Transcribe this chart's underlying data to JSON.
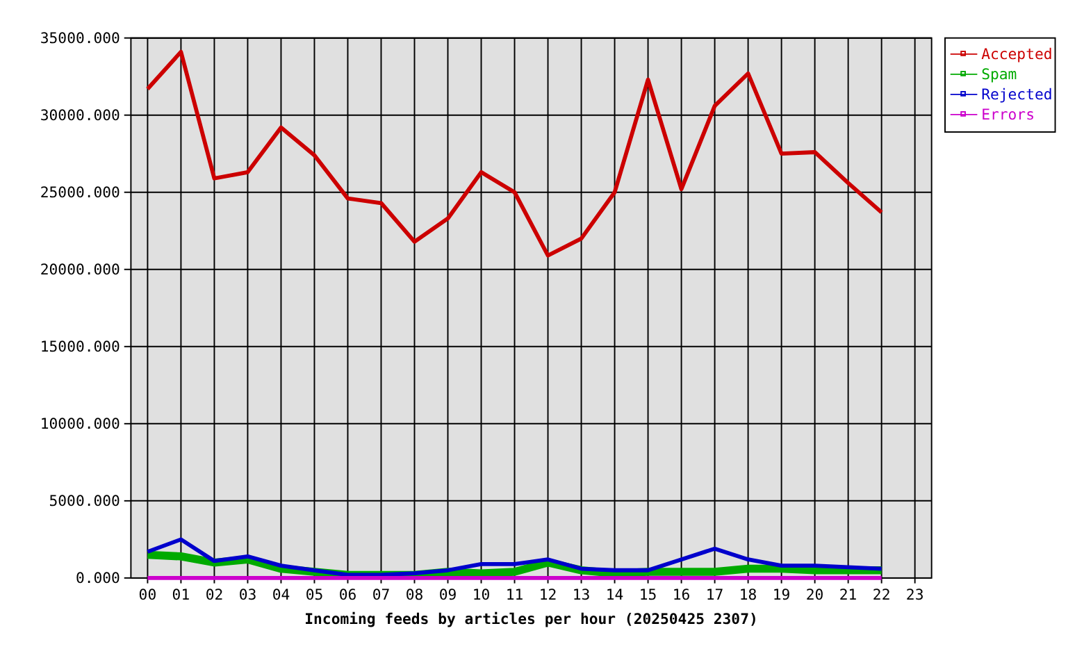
{
  "chart_data": {
    "type": "line",
    "xlabel": "Incoming feeds by articles per hour (20250425 2307)",
    "categories": [
      "00",
      "01",
      "02",
      "03",
      "04",
      "05",
      "06",
      "07",
      "08",
      "09",
      "10",
      "11",
      "12",
      "13",
      "14",
      "15",
      "16",
      "17",
      "18",
      "19",
      "20",
      "21",
      "22",
      "23"
    ],
    "series": [
      {
        "name": "Accepted",
        "color": "#cc0000",
        "values": [
          31700,
          34100,
          25900,
          26300,
          29200,
          27400,
          24600,
          24300,
          21800,
          23300,
          26300,
          25000,
          20900,
          22000,
          25000,
          32300,
          25200,
          30600,
          32700,
          27500,
          27600,
          25600,
          23700,
          null
        ]
      },
      {
        "name": "Spam",
        "color": "#00aa00",
        "values": [
          1500,
          1400,
          1000,
          1200,
          600,
          400,
          200,
          200,
          200,
          400,
          300,
          400,
          1000,
          500,
          300,
          400,
          400,
          400,
          600,
          600,
          500,
          500,
          500,
          null
        ]
      },
      {
        "name": "Rejected",
        "color": "#0000cc",
        "values": [
          1700,
          2500,
          1100,
          1400,
          800,
          500,
          200,
          200,
          300,
          500,
          900,
          900,
          1200,
          600,
          500,
          500,
          1200,
          1900,
          1200,
          800,
          800,
          700,
          600,
          null
        ]
      },
      {
        "name": "Errors",
        "color": "#cc00cc",
        "values": [
          0,
          0,
          0,
          0,
          0,
          0,
          0,
          0,
          0,
          0,
          0,
          0,
          0,
          0,
          0,
          0,
          0,
          0,
          0,
          0,
          0,
          0,
          0,
          null
        ]
      }
    ],
    "ylim": [
      0,
      35000
    ],
    "yticks": [
      {
        "value": 0,
        "label": "0.000"
      },
      {
        "value": 5000,
        "label": "5000.000"
      },
      {
        "value": 10000,
        "label": "10000.000"
      },
      {
        "value": 15000,
        "label": "15000.000"
      },
      {
        "value": 20000,
        "label": "20000.000"
      },
      {
        "value": 25000,
        "label": "25000.000"
      },
      {
        "value": 30000,
        "label": "30000.000"
      },
      {
        "value": 35000,
        "label": "35000.000"
      }
    ],
    "grid": true,
    "legend": "top right",
    "marker": "none"
  }
}
